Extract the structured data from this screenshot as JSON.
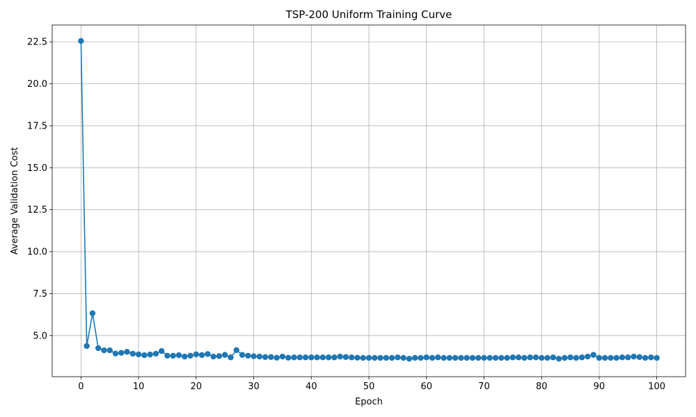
{
  "chart_data": {
    "type": "line",
    "title": "TSP-200 Uniform Training Curve",
    "xlabel": "Epoch",
    "ylabel": "Average Validation Cost",
    "xlim": [
      -5,
      105
    ],
    "ylim": [
      2.55,
      23.5
    ],
    "xticks": [
      0,
      10,
      20,
      30,
      40,
      50,
      60,
      70,
      80,
      90,
      100
    ],
    "yticks": [
      5.0,
      7.5,
      10.0,
      12.5,
      15.0,
      17.5,
      20.0,
      22.5
    ],
    "ytick_labels": [
      "5.0",
      "7.5",
      "10.0",
      "12.5",
      "15.0",
      "17.5",
      "20.0",
      "22.5"
    ],
    "grid": true,
    "marker": "circle",
    "color": "#1f77b4",
    "series": [
      {
        "x": [
          0,
          1,
          2,
          3,
          4,
          5,
          6,
          7,
          8,
          9,
          10,
          11,
          12,
          13,
          14,
          15,
          16,
          17,
          18,
          19,
          20,
          21,
          22,
          23,
          24,
          25,
          26,
          27,
          28,
          29,
          30,
          31,
          32,
          33,
          34,
          35,
          36,
          37,
          38,
          39,
          40,
          41,
          42,
          43,
          44,
          45,
          46,
          47,
          48,
          49,
          50,
          51,
          52,
          53,
          54,
          55,
          56,
          57,
          58,
          59,
          60,
          61,
          62,
          63,
          64,
          65,
          66,
          67,
          68,
          69,
          70,
          71,
          72,
          73,
          74,
          75,
          76,
          77,
          78,
          79,
          80,
          81,
          82,
          83,
          84,
          85,
          86,
          87,
          88,
          89,
          90,
          91,
          92,
          93,
          94,
          95,
          96,
          97,
          98,
          99,
          100
        ],
        "y": [
          22.55,
          4.38,
          6.33,
          4.25,
          4.12,
          4.12,
          3.93,
          3.97,
          4.03,
          3.92,
          3.88,
          3.83,
          3.87,
          3.92,
          4.08,
          3.8,
          3.8,
          3.83,
          3.75,
          3.8,
          3.88,
          3.84,
          3.9,
          3.75,
          3.78,
          3.85,
          3.7,
          4.13,
          3.85,
          3.8,
          3.77,
          3.75,
          3.72,
          3.72,
          3.68,
          3.75,
          3.68,
          3.7,
          3.7,
          3.7,
          3.7,
          3.7,
          3.7,
          3.7,
          3.7,
          3.75,
          3.72,
          3.7,
          3.68,
          3.67,
          3.67,
          3.67,
          3.67,
          3.67,
          3.67,
          3.7,
          3.67,
          3.62,
          3.67,
          3.67,
          3.7,
          3.67,
          3.7,
          3.67,
          3.67,
          3.67,
          3.67,
          3.67,
          3.67,
          3.67,
          3.67,
          3.67,
          3.67,
          3.67,
          3.67,
          3.7,
          3.7,
          3.67,
          3.7,
          3.7,
          3.67,
          3.67,
          3.7,
          3.62,
          3.67,
          3.7,
          3.67,
          3.7,
          3.75,
          3.85,
          3.67,
          3.67,
          3.67,
          3.67,
          3.7,
          3.7,
          3.75,
          3.72,
          3.67,
          3.7,
          3.67
        ]
      }
    ]
  }
}
